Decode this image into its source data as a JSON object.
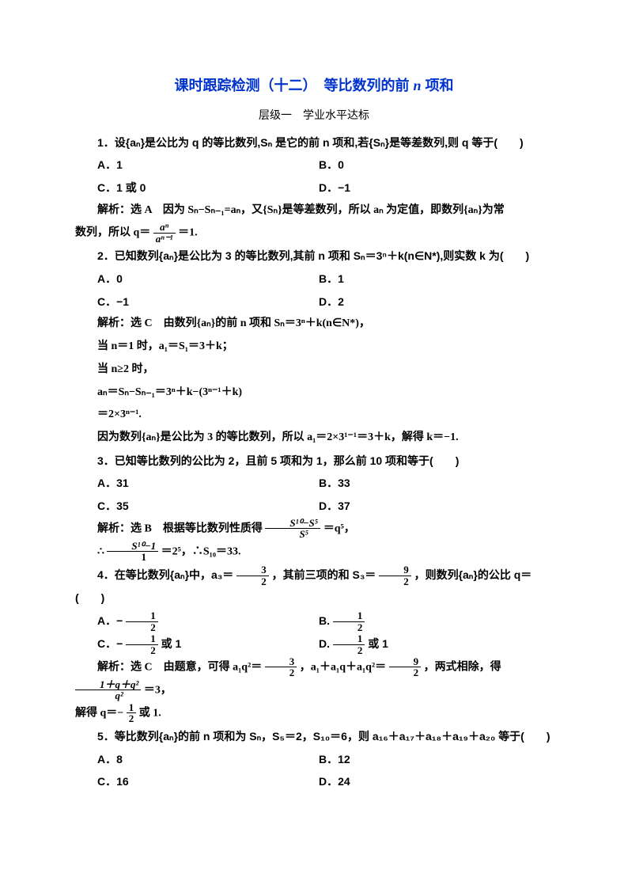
{
  "title_a": "课时跟踪检测（十二）　等比数列的前 ",
  "title_b": " 项和",
  "title_n": "n",
  "subtitle": "层级一　学业水平达标",
  "q1": {
    "stem": "1．设{aₙ}是公比为 q 的等比数列,Sₙ 是它的前 n 项和,若{Sₙ}是等差数列,则 q 等于(　　)",
    "A": "A．1",
    "B": "B．0",
    "C": "C．1 或 0",
    "D": "D．−1",
    "sol_a": "解析：选 A　因为 Sₙ−Sₙ₋₁=aₙ，又{Sₙ}是等差数列，所以 aₙ 为定值，即数列{aₙ}为常",
    "sol_b": "数列，所以 q＝",
    "sol_c": "＝1."
  },
  "q2": {
    "stem": "2．已知数列{aₙ}是公比为 3 的等比数列,其前 n 项和 Sₙ＝3ⁿ＋k(n∈N*),则实数 k 为(　　)",
    "A": "A．0",
    "B": "B．1",
    "C": "C．−1",
    "D": "D．2",
    "sol_a": "解析：选 C　由数列{aₙ}的前 n 项和 Sₙ＝3ⁿ＋k(n∈N*)，",
    "sol_b": "当 n＝1 时，a₁＝S₁＝3＋k；",
    "sol_c": "当 n≥2 时，",
    "sol_d": "aₙ＝Sₙ−Sₙ₋₁＝3ⁿ＋k−(3ⁿ⁻¹＋k)",
    "sol_e": "＝2×3ⁿ⁻¹.",
    "sol_f": "因为数列{aₙ}是公比为 3 的等比数列，所以 a₁＝2×3¹⁻¹＝3＋k，解得 k＝−1."
  },
  "q3": {
    "stem": "3．已知等比数列的公比为 2，且前 5 项和为 1，那么前 10 项和等于(　　)",
    "A": "A．31",
    "B": "B．33",
    "C": "C．35",
    "D": "D．37",
    "sol_a": "解析：选 B　根据等比数列性质得",
    "sol_b": "＝q⁵，",
    "sol_c": "∴",
    "sol_d": "＝2⁵，∴S₁₀＝33."
  },
  "q4": {
    "stem_a": "4．在等比数列{aₙ}中，a₃＝",
    "stem_b": "，其前三项的和 S₃＝",
    "stem_c": "，则数列{aₙ}的公比 q＝(　　)",
    "A_pre": "A．−",
    "B_pre": "B.",
    "C_pre": "C．−",
    "C_suf": "或 1",
    "D_pre": "D.",
    "D_suf": "或 1",
    "sol_a": "解析：选 C　由题意，可得 a₁q²＝",
    "sol_b": "，a₁＋a₁q＋a₁q²＝",
    "sol_c": "，两式相除，得",
    "sol_d": "＝3，",
    "sol_e": "解得 q＝−",
    "sol_f": "或 1."
  },
  "q5": {
    "stem": "5．等比数列{aₙ}的前 n 项和为 Sₙ，S₅＝2，S₁₀＝6，则 a₁₆＋a₁₇＋a₁₈＋a₁₉＋a₂₀ 等于(　　)",
    "A": "A．8",
    "B": "B．12",
    "C": "C．16",
    "D": "D．24"
  },
  "frac": {
    "three": "3",
    "two": "2",
    "nine": "9",
    "one": "1",
    "an": "aⁿ",
    "an1": "aⁿ⁻¹",
    "s10s5": "S¹⁰−S⁵",
    "s5": "S⁵",
    "s101": "S¹⁰−1",
    "qnum": "1＋q＋q²",
    "qden": "q²"
  }
}
